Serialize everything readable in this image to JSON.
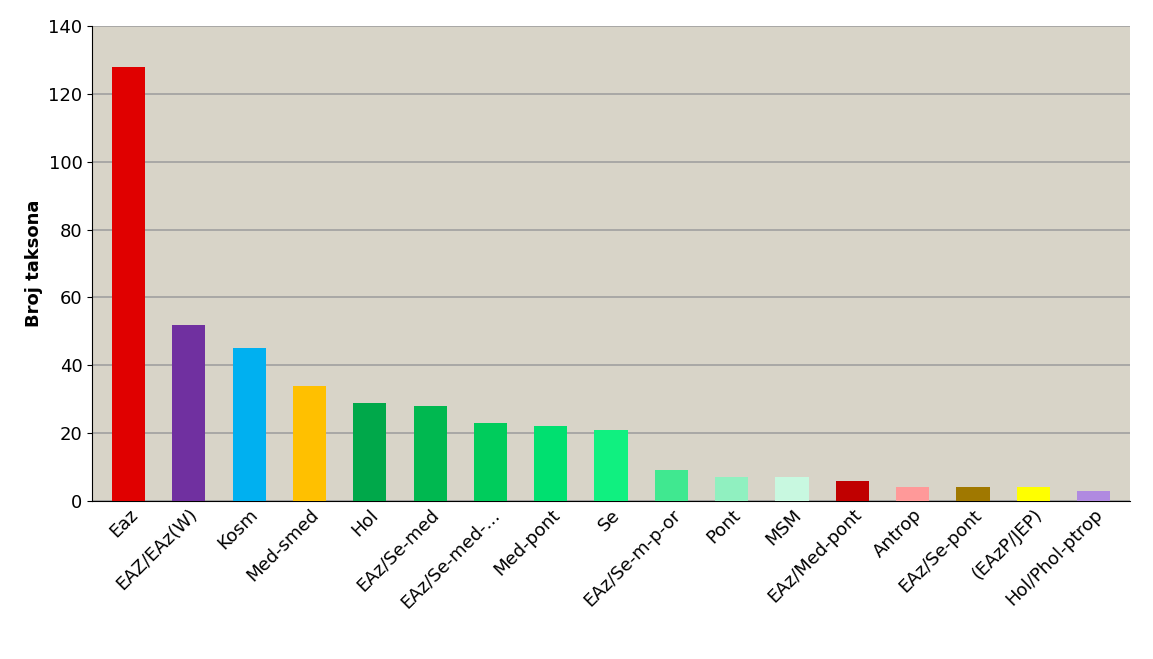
{
  "chart_data": {
    "type": "bar",
    "y_label": "Broj taksona",
    "categories": [
      "Eaz",
      "EAZ/EAz(W)",
      "Kosm",
      "Med-smed",
      "Hol",
      "EAz/Se-med",
      "EAz/Se-med-...",
      "Med-pont",
      "Se",
      "EAz/Se-m-p-or",
      "Pont",
      "MSM",
      "EAz/Med-pont",
      "Antrop",
      "EAz/Se-pont",
      "(EAzP/JEP)",
      "Hol/Phol-ptrop"
    ],
    "values": [
      128,
      52,
      45,
      34,
      29,
      28,
      23,
      22,
      21,
      9,
      7,
      7,
      6,
      4,
      4,
      4,
      3
    ],
    "colors": [
      "#e00000",
      "#7030a0",
      "#00b0f0",
      "#ffc000",
      "#00a84a",
      "#00b850",
      "#00cc5c",
      "#00e070",
      "#10f080",
      "#40e890",
      "#90f0c0",
      "#c8f8e0",
      "#c00000",
      "#ff9999",
      "#a07800",
      "#ffff00",
      "#b08ae0"
    ],
    "ylim": [
      0,
      140
    ],
    "yticks": [
      0,
      20,
      40,
      60,
      80,
      100,
      120,
      140
    ],
    "grid": true
  }
}
